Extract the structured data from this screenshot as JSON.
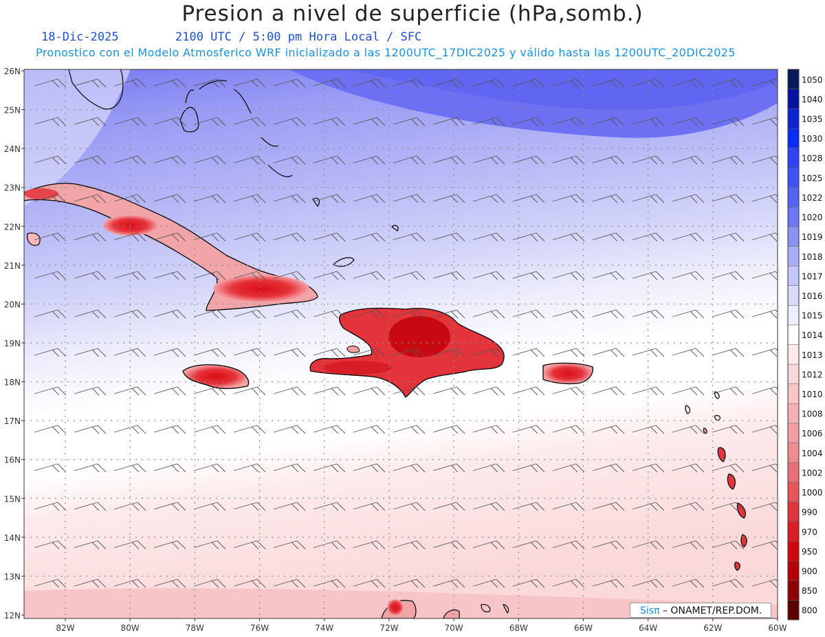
{
  "header": {
    "title": "Presion a nivel de superficie (hPa,somb.)",
    "date": "18-Dic-2025",
    "time_info": "2100 UTC / 5:00 pm Hora Local / SFC",
    "forecast_info": "Pronostico con el Modelo Atmosferico WRF inicializado a las 1200UTC_17DIC2025 y válido hasta las  1200UTC_20DIC2025"
  },
  "map": {
    "lat_labels": [
      "26N",
      "25N",
      "24N",
      "23N",
      "22N",
      "21N",
      "20N",
      "19N",
      "18N",
      "17N",
      "16N",
      "15N",
      "14N",
      "13N",
      "12N"
    ],
    "lon_labels": [
      "82W",
      "80W",
      "78W",
      "76W",
      "74W",
      "72W",
      "70W",
      "68W",
      "66W",
      "64W",
      "62W",
      "60W"
    ],
    "colors": {
      "high_pressure": "#6b6cf3",
      "mid_pressure": "#b9b9f6",
      "low_pressure": "#e6343a",
      "coast": "#000000",
      "grid": "#9a9a9a"
    }
  },
  "legend": {
    "levels": [
      "1050",
      "1040",
      "1035",
      "1030",
      "1028",
      "1025",
      "1022",
      "1020",
      "1019",
      "1018",
      "1017",
      "1016",
      "1015",
      "1014",
      "1013",
      "1012",
      "1010",
      "1008",
      "1006",
      "1004",
      "1002",
      "1000",
      "990",
      "970",
      "950",
      "900",
      "850",
      "800"
    ],
    "swatches": [
      "#081a5a",
      "#04129e",
      "#0b24d0",
      "#0b2cf5",
      "#2f43f5",
      "#3f52f3",
      "#5563f3",
      "#6b77f3",
      "#8a92f5",
      "#a8aef7",
      "#c2c6f8",
      "#d9dbfa",
      "#eceefc",
      "#ffffff",
      "#fde9ea",
      "#fbd9da",
      "#f9c6c8",
      "#f6b0b3",
      "#f29ea2",
      "#ee8c91",
      "#e97076",
      "#e4555c",
      "#de343b",
      "#d91e25",
      "#d1070f",
      "#b50008",
      "#8c0006",
      "#5a0003"
    ]
  },
  "credit": {
    "sis": "Sis",
    "pi": "π",
    "rest": " – ONAMET/REP.DOM."
  }
}
